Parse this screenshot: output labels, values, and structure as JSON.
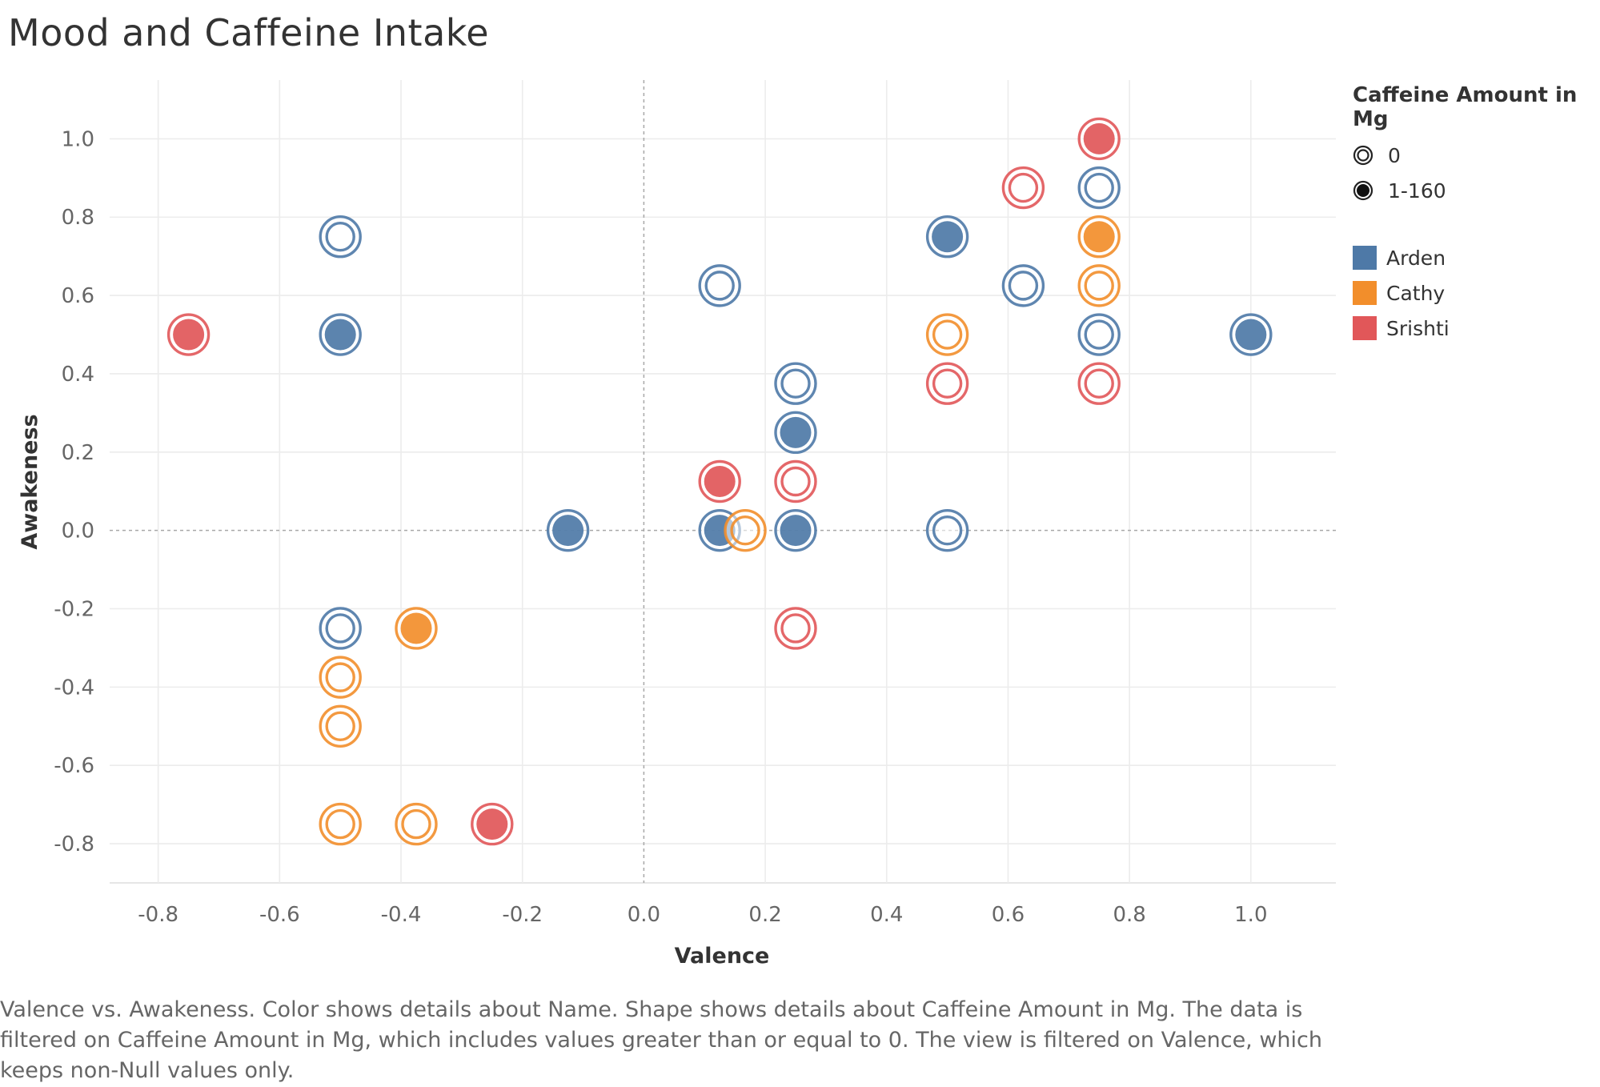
{
  "title": "Mood and Caffeine Intake",
  "caption": "Valence vs. Awakeness.  Color shows details about Name.  Shape shows details about Caffeine Amount in Mg. The data is filtered on Caffeine Amount in Mg, which includes values greater than or equal to 0. The view is filtered on Valence, which keeps non-Null values only.",
  "legend": {
    "shape_title": "Caffeine Amount in Mg",
    "shape_items": [
      {
        "label": "0",
        "shape": "hollow-circle-icon"
      },
      {
        "label": "1-160",
        "shape": "filled-circle-icon"
      }
    ],
    "color_items": [
      {
        "label": "Arden",
        "color": "#4e79a7"
      },
      {
        "label": "Cathy",
        "color": "#f28e2b"
      },
      {
        "label": "Srishti",
        "color": "#e15759"
      }
    ]
  },
  "chart_data": {
    "type": "scatter",
    "title": "Mood and Caffeine Intake",
    "xlabel": "Valence",
    "ylabel": "Awakeness",
    "xlim": [
      -0.88,
      1.14
    ],
    "ylim": [
      -0.9,
      1.15
    ],
    "xticks": [
      -0.8,
      -0.6,
      -0.4,
      -0.2,
      0.0,
      0.2,
      0.4,
      0.6,
      0.8,
      1.0
    ],
    "xtick_labels": [
      "-0.8",
      "-0.6",
      "-0.4",
      "-0.2",
      "0.0",
      "0.2",
      "0.4",
      "0.6",
      "0.8",
      "1.0"
    ],
    "yticks": [
      1.0,
      0.8,
      0.6,
      0.4,
      0.2,
      0.0,
      -0.2,
      -0.4,
      -0.6,
      -0.8
    ],
    "ytick_labels": [
      "1.0",
      "0.8",
      "0.6",
      "0.4",
      "0.2",
      "0.0",
      "-0.2",
      "-0.4",
      "-0.6",
      "-0.8"
    ],
    "grid": true,
    "zero_lines": true,
    "legend_position": "right",
    "colors": {
      "Arden": "#4e79a7",
      "Cathy": "#f28e2b",
      "Srishti": "#e15759"
    },
    "series": [
      {
        "name": "Arden",
        "points": [
          {
            "x": -0.5,
            "y": 0.75,
            "caffeine": "0"
          },
          {
            "x": -0.5,
            "y": 0.5,
            "caffeine": "1-160"
          },
          {
            "x": -0.5,
            "y": -0.25,
            "caffeine": "0"
          },
          {
            "x": -0.125,
            "y": 0.0,
            "caffeine": "1-160"
          },
          {
            "x": 0.125,
            "y": 0.625,
            "caffeine": "0"
          },
          {
            "x": 0.125,
            "y": 0.0,
            "caffeine": "1-160"
          },
          {
            "x": 0.25,
            "y": 0.375,
            "caffeine": "0"
          },
          {
            "x": 0.25,
            "y": 0.25,
            "caffeine": "1-160"
          },
          {
            "x": 0.25,
            "y": 0.0,
            "caffeine": "1-160"
          },
          {
            "x": 0.5,
            "y": 0.75,
            "caffeine": "1-160"
          },
          {
            "x": 0.5,
            "y": 0.0,
            "caffeine": "0"
          },
          {
            "x": 0.625,
            "y": 0.625,
            "caffeine": "0"
          },
          {
            "x": 0.75,
            "y": 0.875,
            "caffeine": "0"
          },
          {
            "x": 0.75,
            "y": 0.5,
            "caffeine": "0"
          },
          {
            "x": 1.0,
            "y": 0.5,
            "caffeine": "1-160"
          }
        ]
      },
      {
        "name": "Cathy",
        "points": [
          {
            "x": -0.375,
            "y": -0.25,
            "caffeine": "1-160"
          },
          {
            "x": -0.5,
            "y": -0.375,
            "caffeine": "0"
          },
          {
            "x": -0.5,
            "y": -0.5,
            "caffeine": "0"
          },
          {
            "x": -0.5,
            "y": -0.75,
            "caffeine": "0"
          },
          {
            "x": -0.375,
            "y": -0.75,
            "caffeine": "0"
          },
          {
            "x": 0.167,
            "y": 0.0,
            "caffeine": "0"
          },
          {
            "x": 0.5,
            "y": 0.5,
            "caffeine": "0"
          },
          {
            "x": 0.75,
            "y": 0.75,
            "caffeine": "1-160"
          },
          {
            "x": 0.75,
            "y": 0.625,
            "caffeine": "0"
          }
        ]
      },
      {
        "name": "Srishti",
        "points": [
          {
            "x": -0.75,
            "y": 0.5,
            "caffeine": "1-160"
          },
          {
            "x": -0.25,
            "y": -0.75,
            "caffeine": "1-160"
          },
          {
            "x": 0.125,
            "y": 0.125,
            "caffeine": "1-160"
          },
          {
            "x": 0.25,
            "y": 0.125,
            "caffeine": "0"
          },
          {
            "x": 0.25,
            "y": -0.25,
            "caffeine": "0"
          },
          {
            "x": 0.5,
            "y": 0.375,
            "caffeine": "0"
          },
          {
            "x": 0.625,
            "y": 0.875,
            "caffeine": "0"
          },
          {
            "x": 0.75,
            "y": 1.0,
            "caffeine": "1-160"
          },
          {
            "x": 0.75,
            "y": 0.375,
            "caffeine": "0"
          }
        ]
      }
    ]
  }
}
